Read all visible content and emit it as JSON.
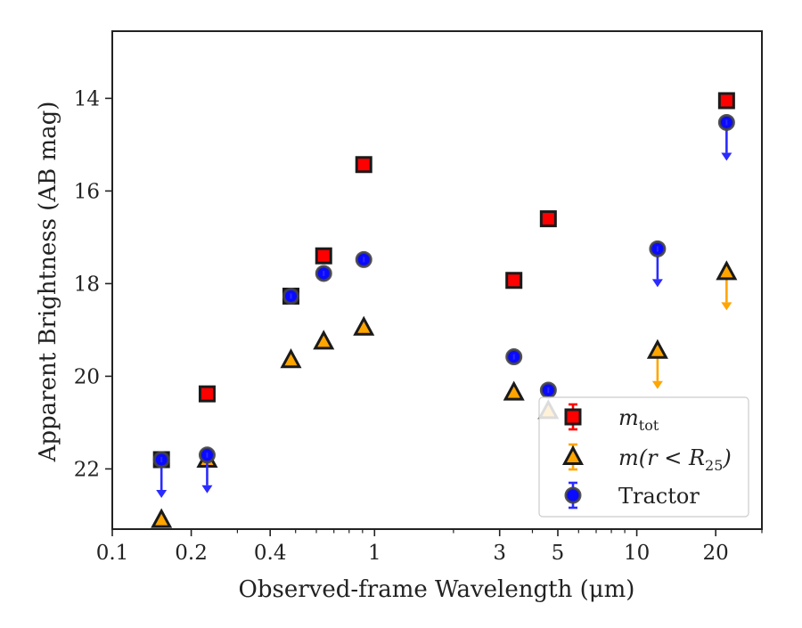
{
  "chart_data": {
    "type": "scatter",
    "xlabel": "Observed-frame Wavelength (μm)",
    "ylabel": "Apparent Brightness (AB mag)",
    "xscale": "log",
    "xlim": [
      0.1,
      30
    ],
    "ylim": [
      23.3,
      12.55
    ],
    "y_inverted": true,
    "xticks": [
      {
        "value": 0.1,
        "label": "0.1"
      },
      {
        "value": 0.2,
        "label": "0.2"
      },
      {
        "value": 0.4,
        "label": "0.4"
      },
      {
        "value": 1,
        "label": "1"
      },
      {
        "value": 3,
        "label": "3"
      },
      {
        "value": 5,
        "label": "5"
      },
      {
        "value": 10,
        "label": "10"
      },
      {
        "value": 20,
        "label": "20"
      }
    ],
    "minor_xticks": [
      0.3,
      0.5,
      0.6,
      0.7,
      0.8,
      0.9,
      2,
      4,
      6,
      7,
      8,
      9,
      30
    ],
    "yticks": [
      {
        "value": 14,
        "label": "14"
      },
      {
        "value": 16,
        "label": "16"
      },
      {
        "value": 18,
        "label": "18"
      },
      {
        "value": 20,
        "label": "20"
      },
      {
        "value": 22,
        "label": "22"
      }
    ],
    "legend_position": "lower-right",
    "grid": false,
    "series": [
      {
        "name_main": "m",
        "name_sub": "tot",
        "marker": "square",
        "face_color": "#ff0000",
        "edge_color": "#1a1a1a",
        "errbar_color": "#ff0000",
        "points": [
          {
            "x": 0.154,
            "y": 21.8
          },
          {
            "x": 0.23,
            "y": 20.38
          },
          {
            "x": 0.48,
            "y": 18.27
          },
          {
            "x": 0.64,
            "y": 17.4
          },
          {
            "x": 0.91,
            "y": 15.43
          },
          {
            "x": 3.4,
            "y": 17.93
          },
          {
            "x": 4.6,
            "y": 16.6
          },
          {
            "x": 22,
            "y": 14.05
          }
        ]
      },
      {
        "name_main": "m(r < R",
        "name_sub": "25",
        "name_tail": ")",
        "marker": "triangle",
        "face_color": "#ffa500",
        "edge_color": "#1a1a1a",
        "errbar_color": "#ffa500",
        "points": [
          {
            "x": 0.154,
            "y": 23.1,
            "upper_limit": false
          },
          {
            "x": 0.23,
            "y": 21.8,
            "upper_limit": false
          },
          {
            "x": 0.48,
            "y": 19.65,
            "upper_limit": false
          },
          {
            "x": 0.64,
            "y": 19.25,
            "upper_limit": false
          },
          {
            "x": 0.91,
            "y": 18.95,
            "upper_limit": false
          },
          {
            "x": 3.4,
            "y": 20.35,
            "upper_limit": false
          },
          {
            "x": 4.6,
            "y": 20.75,
            "upper_limit": false
          },
          {
            "x": 12,
            "y": 19.45,
            "upper_limit": true
          },
          {
            "x": 22,
            "y": 17.75,
            "upper_limit": true
          }
        ]
      },
      {
        "name_main": "Tractor",
        "marker": "circle",
        "face_color": "#0a0aff",
        "edge_color": "#444444",
        "errbar_color": "#2b2bff",
        "points": [
          {
            "x": 0.154,
            "y": 21.8,
            "upper_limit": true
          },
          {
            "x": 0.23,
            "y": 21.7,
            "upper_limit": true
          },
          {
            "x": 0.48,
            "y": 18.27,
            "upper_limit": false
          },
          {
            "x": 0.64,
            "y": 17.78,
            "upper_limit": false
          },
          {
            "x": 0.91,
            "y": 17.48,
            "upper_limit": false
          },
          {
            "x": 3.4,
            "y": 19.58,
            "upper_limit": false
          },
          {
            "x": 4.6,
            "y": 20.3,
            "upper_limit": false
          },
          {
            "x": 12,
            "y": 17.25,
            "upper_limit": true
          },
          {
            "x": 22,
            "y": 14.52,
            "upper_limit": true
          }
        ]
      }
    ]
  }
}
